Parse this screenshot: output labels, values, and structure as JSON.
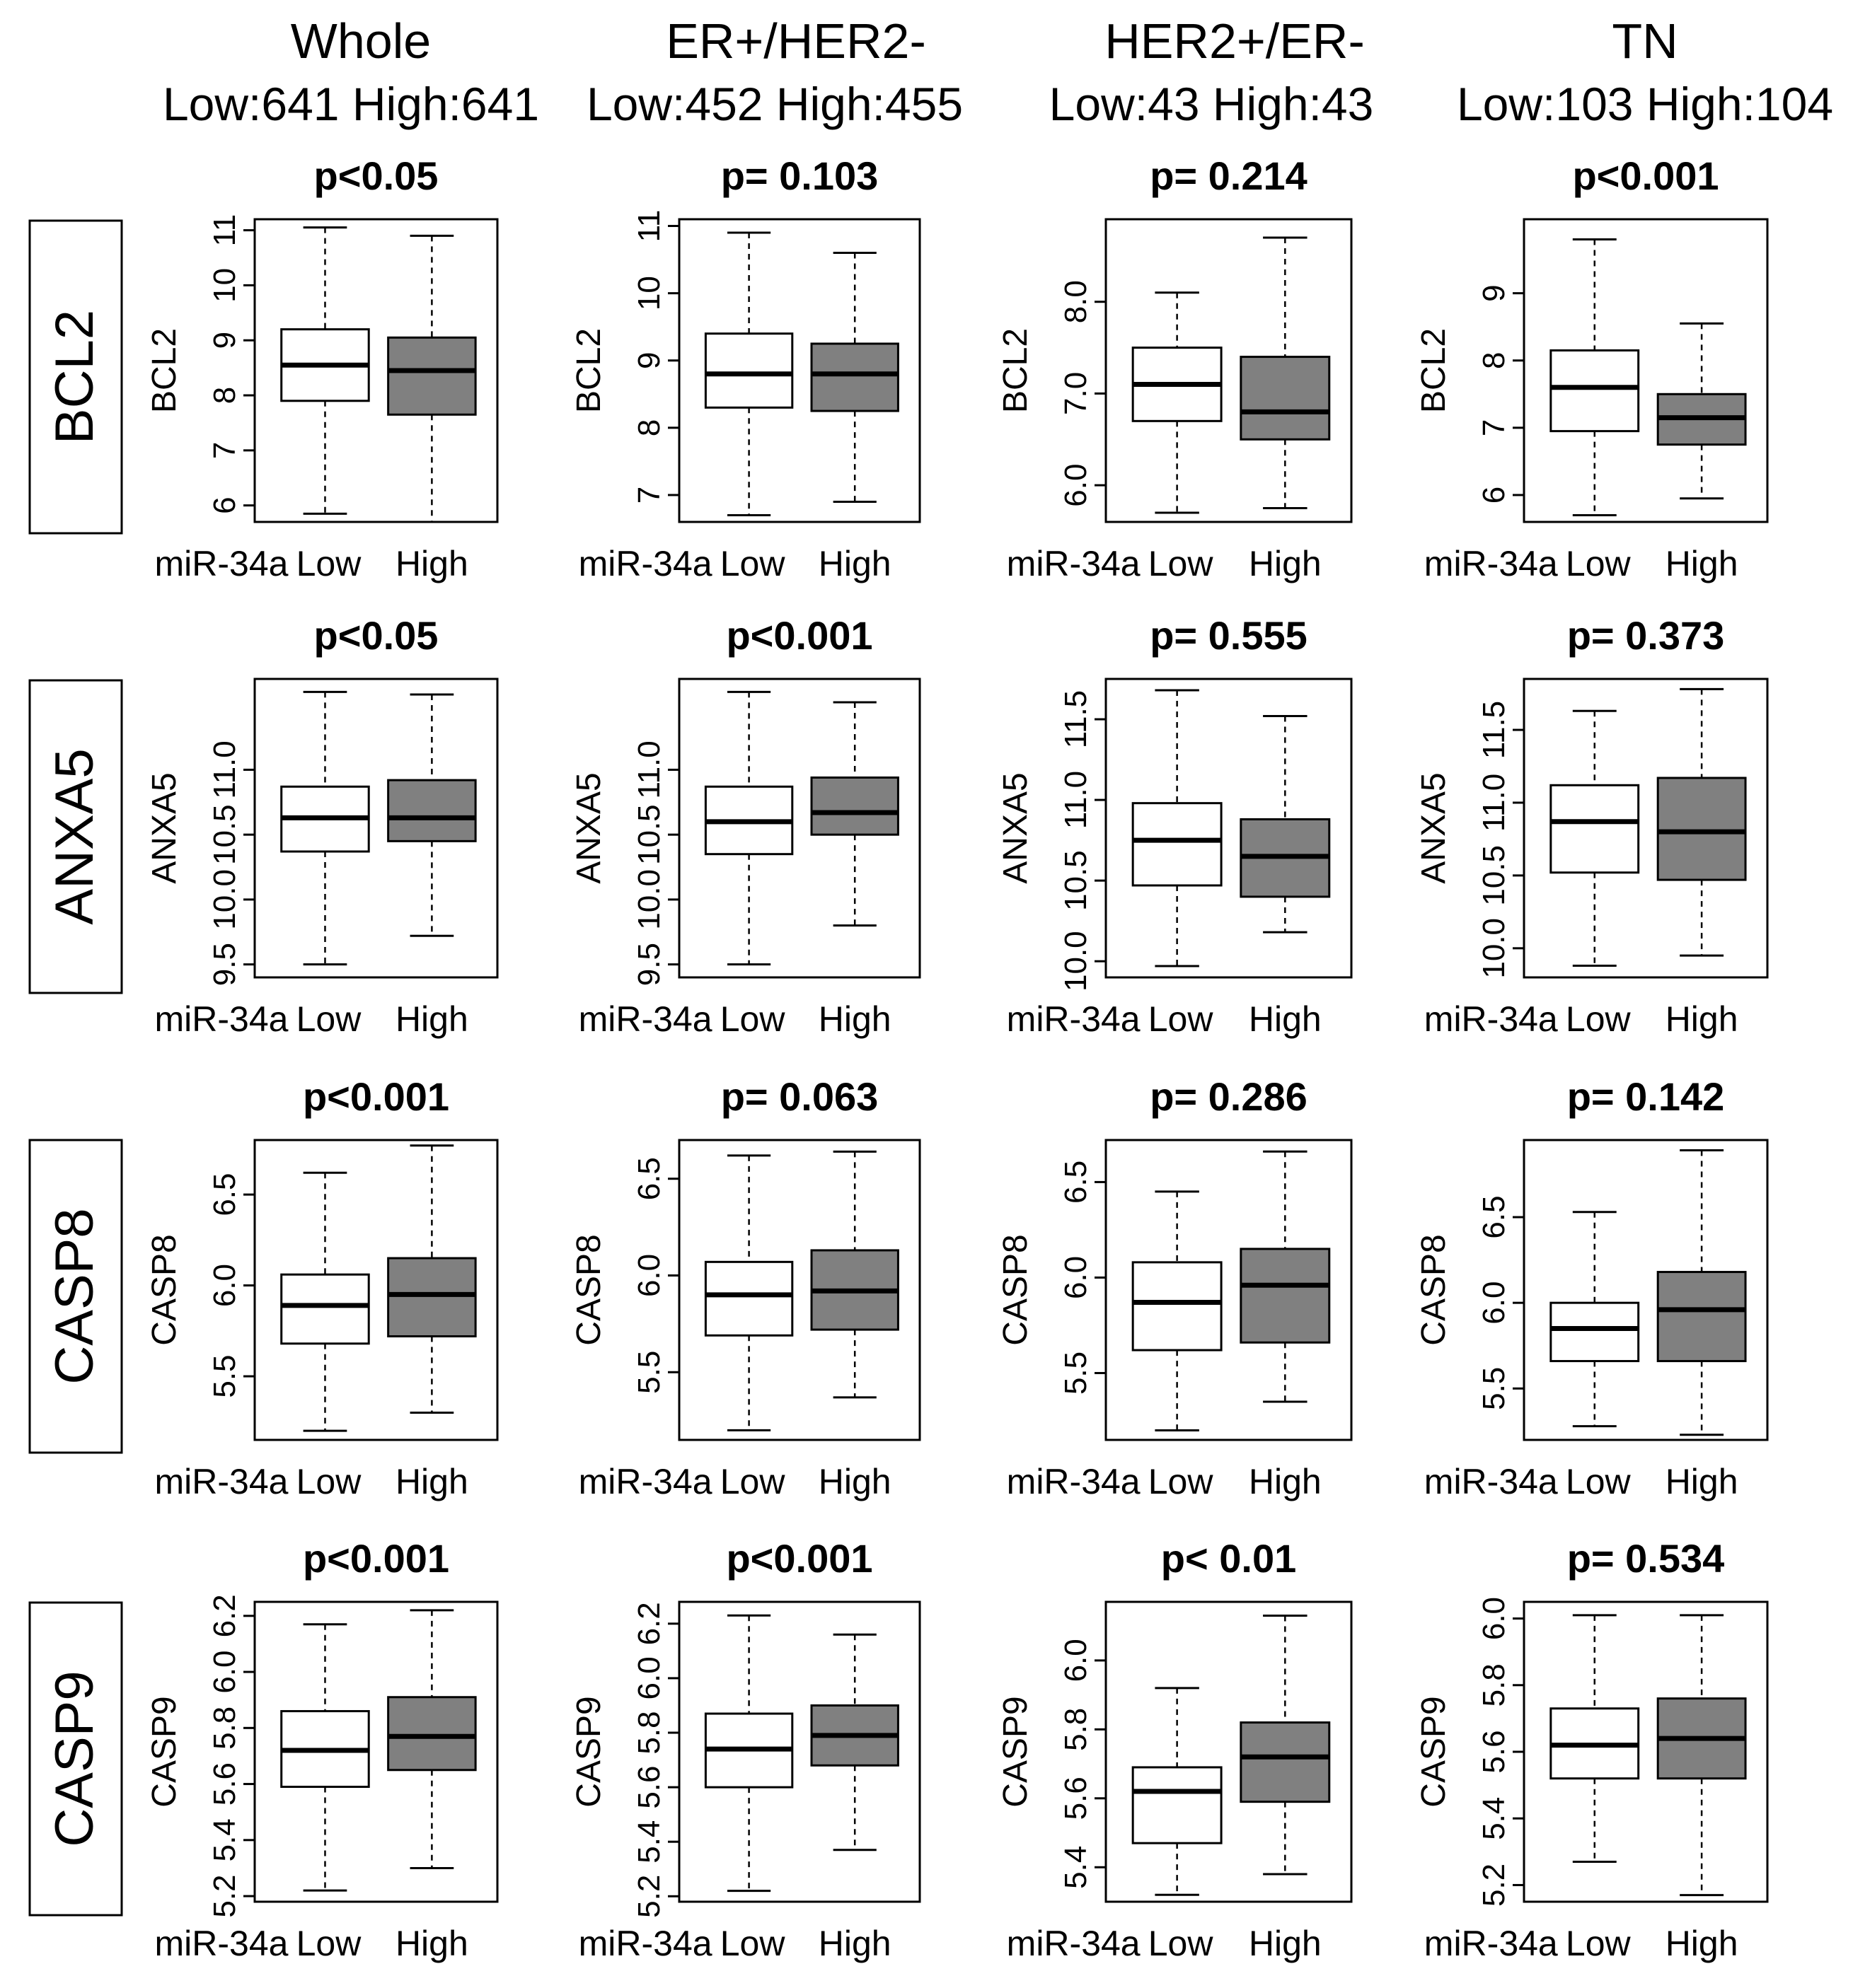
{
  "colors": {
    "low_box": "#ffffff",
    "high_box": "#808080",
    "ink": "#000000"
  },
  "columns": [
    {
      "name": "Whole",
      "counts": "Low:641 High:641"
    },
    {
      "name": "ER+/HER2-",
      "counts": "Low:452 High:455"
    },
    {
      "name": "HER2+/ER-",
      "counts": "Low:43 High:43"
    },
    {
      "name": "TN",
      "counts": "Low:103 High:104"
    }
  ],
  "rows": [
    "BCL2",
    "ANXA5",
    "CASP8",
    "CASP9"
  ],
  "x_category_prefix": "miR-34a",
  "chart_data": {
    "type": "boxplot",
    "categories": [
      "Low",
      "High"
    ],
    "panels": [
      {
        "row": "BCL2",
        "column": "Whole",
        "pvalue": "p<0.05",
        "ylabel": "BCL2",
        "ylim": [
          5.7,
          11.2
        ],
        "ticks": [
          {
            "v": 6,
            "t": "6"
          },
          {
            "v": 7,
            "t": "7"
          },
          {
            "v": 8,
            "t": "8"
          },
          {
            "v": 9,
            "t": "9"
          },
          {
            "v": 10,
            "t": "10"
          },
          {
            "v": 11,
            "t": "11"
          }
        ],
        "boxes": [
          {
            "group": "Low",
            "min": 5.85,
            "q1": 7.9,
            "median": 8.55,
            "q3": 9.2,
            "max": 11.05
          },
          {
            "group": "High",
            "min": 5.7,
            "q1": 7.65,
            "median": 8.45,
            "q3": 9.05,
            "max": 10.9
          }
        ]
      },
      {
        "row": "BCL2",
        "column": "ER+/HER2-",
        "pvalue": "p= 0.103",
        "ylabel": "BCL2",
        "ylim": [
          6.6,
          11.1
        ],
        "ticks": [
          {
            "v": 7,
            "t": "7"
          },
          {
            "v": 8,
            "t": "8"
          },
          {
            "v": 9,
            "t": "9"
          },
          {
            "v": 10,
            "t": "10"
          },
          {
            "v": 11,
            "t": "11"
          }
        ],
        "boxes": [
          {
            "group": "Low",
            "min": 6.7,
            "q1": 8.3,
            "median": 8.8,
            "q3": 9.4,
            "max": 10.9
          },
          {
            "group": "High",
            "min": 6.9,
            "q1": 8.25,
            "median": 8.8,
            "q3": 9.25,
            "max": 10.6
          }
        ]
      },
      {
        "row": "BCL2",
        "column": "HER2+/ER-",
        "pvalue": "p= 0.214",
        "ylabel": "BCL2",
        "ylim": [
          5.6,
          8.9
        ],
        "ticks": [
          {
            "v": 6,
            "t": "6.0"
          },
          {
            "v": 7,
            "t": "7.0"
          },
          {
            "v": 8,
            "t": "8.0"
          }
        ],
        "boxes": [
          {
            "group": "Low",
            "min": 5.7,
            "q1": 6.7,
            "median": 7.1,
            "q3": 7.5,
            "max": 8.1
          },
          {
            "group": "High",
            "min": 5.75,
            "q1": 6.5,
            "median": 6.8,
            "q3": 7.4,
            "max": 8.7
          }
        ]
      },
      {
        "row": "BCL2",
        "column": "TN",
        "pvalue": "p<0.001",
        "ylabel": "BCL2",
        "ylim": [
          5.6,
          10.1
        ],
        "ticks": [
          {
            "v": 6,
            "t": "6"
          },
          {
            "v": 7,
            "t": "7"
          },
          {
            "v": 8,
            "t": "8"
          },
          {
            "v": 9,
            "t": "9"
          }
        ],
        "boxes": [
          {
            "group": "Low",
            "min": 5.7,
            "q1": 6.95,
            "median": 7.6,
            "q3": 8.15,
            "max": 9.8
          },
          {
            "group": "High",
            "min": 5.95,
            "q1": 6.75,
            "median": 7.15,
            "q3": 7.5,
            "max": 8.55
          }
        ]
      },
      {
        "row": "ANXA5",
        "column": "Whole",
        "pvalue": "p<0.05",
        "ylabel": "ANXA5",
        "ylim": [
          9.4,
          11.7
        ],
        "ticks": [
          {
            "v": 9.5,
            "t": "9.5"
          },
          {
            "v": 10.0,
            "t": "10.0"
          },
          {
            "v": 10.5,
            "t": "10.5"
          },
          {
            "v": 11.0,
            "t": "11.0"
          }
        ],
        "boxes": [
          {
            "group": "Low",
            "min": 9.5,
            "q1": 10.37,
            "median": 10.63,
            "q3": 10.87,
            "max": 11.6
          },
          {
            "group": "High",
            "min": 9.72,
            "q1": 10.45,
            "median": 10.63,
            "q3": 10.92,
            "max": 11.58
          }
        ]
      },
      {
        "row": "ANXA5",
        "column": "ER+/HER2-",
        "pvalue": "p<0.001",
        "ylabel": "ANXA5",
        "ylim": [
          9.4,
          11.7
        ],
        "ticks": [
          {
            "v": 9.5,
            "t": "9.5"
          },
          {
            "v": 10.0,
            "t": "10.0"
          },
          {
            "v": 10.5,
            "t": "10.5"
          },
          {
            "v": 11.0,
            "t": "11.0"
          }
        ],
        "boxes": [
          {
            "group": "Low",
            "min": 9.5,
            "q1": 10.35,
            "median": 10.6,
            "q3": 10.87,
            "max": 11.6
          },
          {
            "group": "High",
            "min": 9.8,
            "q1": 10.5,
            "median": 10.67,
            "q3": 10.94,
            "max": 11.52
          }
        ]
      },
      {
        "row": "ANXA5",
        "column": "HER2+/ER-",
        "pvalue": "p= 0.555",
        "ylabel": "ANXA5",
        "ylim": [
          9.9,
          11.75
        ],
        "ticks": [
          {
            "v": 10.0,
            "t": "10.0"
          },
          {
            "v": 10.5,
            "t": "10.5"
          },
          {
            "v": 11.0,
            "t": "11.0"
          },
          {
            "v": 11.5,
            "t": "11.5"
          }
        ],
        "boxes": [
          {
            "group": "Low",
            "min": 9.97,
            "q1": 10.47,
            "median": 10.75,
            "q3": 10.98,
            "max": 11.68
          },
          {
            "group": "High",
            "min": 10.18,
            "q1": 10.4,
            "median": 10.65,
            "q3": 10.88,
            "max": 11.52
          }
        ]
      },
      {
        "row": "ANXA5",
        "column": "TN",
        "pvalue": "p= 0.373",
        "ylabel": "ANXA5",
        "ylim": [
          9.8,
          11.85
        ],
        "ticks": [
          {
            "v": 10.0,
            "t": "10.0"
          },
          {
            "v": 10.5,
            "t": "10.5"
          },
          {
            "v": 11.0,
            "t": "11.0"
          },
          {
            "v": 11.5,
            "t": "11.5"
          }
        ],
        "boxes": [
          {
            "group": "Low",
            "min": 9.88,
            "q1": 10.52,
            "median": 10.87,
            "q3": 11.12,
            "max": 11.63
          },
          {
            "group": "High",
            "min": 9.95,
            "q1": 10.47,
            "median": 10.8,
            "q3": 11.17,
            "max": 11.78
          }
        ]
      },
      {
        "row": "CASP8",
        "column": "Whole",
        "pvalue": "p<0.001",
        "ylabel": "CASP8",
        "ylim": [
          5.15,
          6.8
        ],
        "ticks": [
          {
            "v": 5.5,
            "t": "5.5"
          },
          {
            "v": 6.0,
            "t": "6.0"
          },
          {
            "v": 6.5,
            "t": "6.5"
          }
        ],
        "boxes": [
          {
            "group": "Low",
            "min": 5.2,
            "q1": 5.68,
            "median": 5.89,
            "q3": 6.06,
            "max": 6.62
          },
          {
            "group": "High",
            "min": 5.3,
            "q1": 5.72,
            "median": 5.95,
            "q3": 6.15,
            "max": 6.77
          }
        ]
      },
      {
        "row": "CASP8",
        "column": "ER+/HER2-",
        "pvalue": "p= 0.063",
        "ylabel": "CASP8",
        "ylim": [
          5.15,
          6.7
        ],
        "ticks": [
          {
            "v": 5.5,
            "t": "5.5"
          },
          {
            "v": 6.0,
            "t": "6.0"
          },
          {
            "v": 6.5,
            "t": "6.5"
          }
        ],
        "boxes": [
          {
            "group": "Low",
            "min": 5.2,
            "q1": 5.69,
            "median": 5.9,
            "q3": 6.07,
            "max": 6.62
          },
          {
            "group": "High",
            "min": 5.37,
            "q1": 5.72,
            "median": 5.92,
            "q3": 6.13,
            "max": 6.64
          }
        ]
      },
      {
        "row": "CASP8",
        "column": "HER2+/ER-",
        "pvalue": "p= 0.286",
        "ylabel": "CASP8",
        "ylim": [
          5.15,
          6.72
        ],
        "ticks": [
          {
            "v": 5.5,
            "t": "5.5"
          },
          {
            "v": 6.0,
            "t": "6.0"
          },
          {
            "v": 6.5,
            "t": "6.5"
          }
        ],
        "boxes": [
          {
            "group": "Low",
            "min": 5.2,
            "q1": 5.62,
            "median": 5.87,
            "q3": 6.08,
            "max": 6.45
          },
          {
            "group": "High",
            "min": 5.35,
            "q1": 5.66,
            "median": 5.96,
            "q3": 6.15,
            "max": 6.66
          }
        ]
      },
      {
        "row": "CASP8",
        "column": "TN",
        "pvalue": "p= 0.142",
        "ylabel": "CASP8",
        "ylim": [
          5.2,
          6.95
        ],
        "ticks": [
          {
            "v": 5.5,
            "t": "5.5"
          },
          {
            "v": 6.0,
            "t": "6.0"
          },
          {
            "v": 6.5,
            "t": "6.5"
          }
        ],
        "boxes": [
          {
            "group": "Low",
            "min": 5.28,
            "q1": 5.66,
            "median": 5.85,
            "q3": 6.0,
            "max": 6.53
          },
          {
            "group": "High",
            "min": 5.23,
            "q1": 5.66,
            "median": 5.96,
            "q3": 6.18,
            "max": 6.89
          }
        ]
      },
      {
        "row": "CASP9",
        "column": "Whole",
        "pvalue": "p<0.001",
        "ylabel": "CASP9",
        "ylim": [
          5.18,
          6.25
        ],
        "ticks": [
          {
            "v": 5.2,
            "t": "5.2"
          },
          {
            "v": 5.4,
            "t": "5.4"
          },
          {
            "v": 5.6,
            "t": "5.6"
          },
          {
            "v": 5.8,
            "t": "5.8"
          },
          {
            "v": 6.0,
            "t": "6.0"
          },
          {
            "v": 6.2,
            "t": "6.2"
          }
        ],
        "boxes": [
          {
            "group": "Low",
            "min": 5.22,
            "q1": 5.59,
            "median": 5.72,
            "q3": 5.86,
            "max": 6.17
          },
          {
            "group": "High",
            "min": 5.3,
            "q1": 5.65,
            "median": 5.77,
            "q3": 5.91,
            "max": 6.22
          }
        ]
      },
      {
        "row": "CASP9",
        "column": "ER+/HER2-",
        "pvalue": "p<0.001",
        "ylabel": "CASP9",
        "ylim": [
          5.18,
          6.28
        ],
        "ticks": [
          {
            "v": 5.2,
            "t": "5.2"
          },
          {
            "v": 5.4,
            "t": "5.4"
          },
          {
            "v": 5.6,
            "t": "5.6"
          },
          {
            "v": 5.8,
            "t": "5.8"
          },
          {
            "v": 6.0,
            "t": "6.0"
          },
          {
            "v": 6.2,
            "t": "6.2"
          }
        ],
        "boxes": [
          {
            "group": "Low",
            "min": 5.22,
            "q1": 5.6,
            "median": 5.74,
            "q3": 5.87,
            "max": 6.23
          },
          {
            "group": "High",
            "min": 5.37,
            "q1": 5.68,
            "median": 5.79,
            "q3": 5.9,
            "max": 6.16
          }
        ]
      },
      {
        "row": "CASP9",
        "column": "HER2+/ER-",
        "pvalue": "p< 0.01",
        "ylabel": "CASP9",
        "ylim": [
          5.3,
          6.17
        ],
        "ticks": [
          {
            "v": 5.4,
            "t": "5.4"
          },
          {
            "v": 5.6,
            "t": "5.6"
          },
          {
            "v": 5.8,
            "t": "5.8"
          },
          {
            "v": 6.0,
            "t": "6.0"
          }
        ],
        "boxes": [
          {
            "group": "Low",
            "min": 5.32,
            "q1": 5.47,
            "median": 5.62,
            "q3": 5.69,
            "max": 5.92
          },
          {
            "group": "High",
            "min": 5.38,
            "q1": 5.59,
            "median": 5.72,
            "q3": 5.82,
            "max": 6.13
          }
        ]
      },
      {
        "row": "CASP9",
        "column": "TN",
        "pvalue": "p= 0.534",
        "ylabel": "CASP9",
        "ylim": [
          5.15,
          6.05
        ],
        "ticks": [
          {
            "v": 5.2,
            "t": "5.2"
          },
          {
            "v": 5.4,
            "t": "5.4"
          },
          {
            "v": 5.6,
            "t": "5.6"
          },
          {
            "v": 5.8,
            "t": "5.8"
          },
          {
            "v": 6.0,
            "t": "6.0"
          }
        ],
        "boxes": [
          {
            "group": "Low",
            "min": 5.27,
            "q1": 5.52,
            "median": 5.62,
            "q3": 5.73,
            "max": 6.01
          },
          {
            "group": "High",
            "min": 5.17,
            "q1": 5.52,
            "median": 5.64,
            "q3": 5.76,
            "max": 6.01
          }
        ]
      }
    ]
  }
}
